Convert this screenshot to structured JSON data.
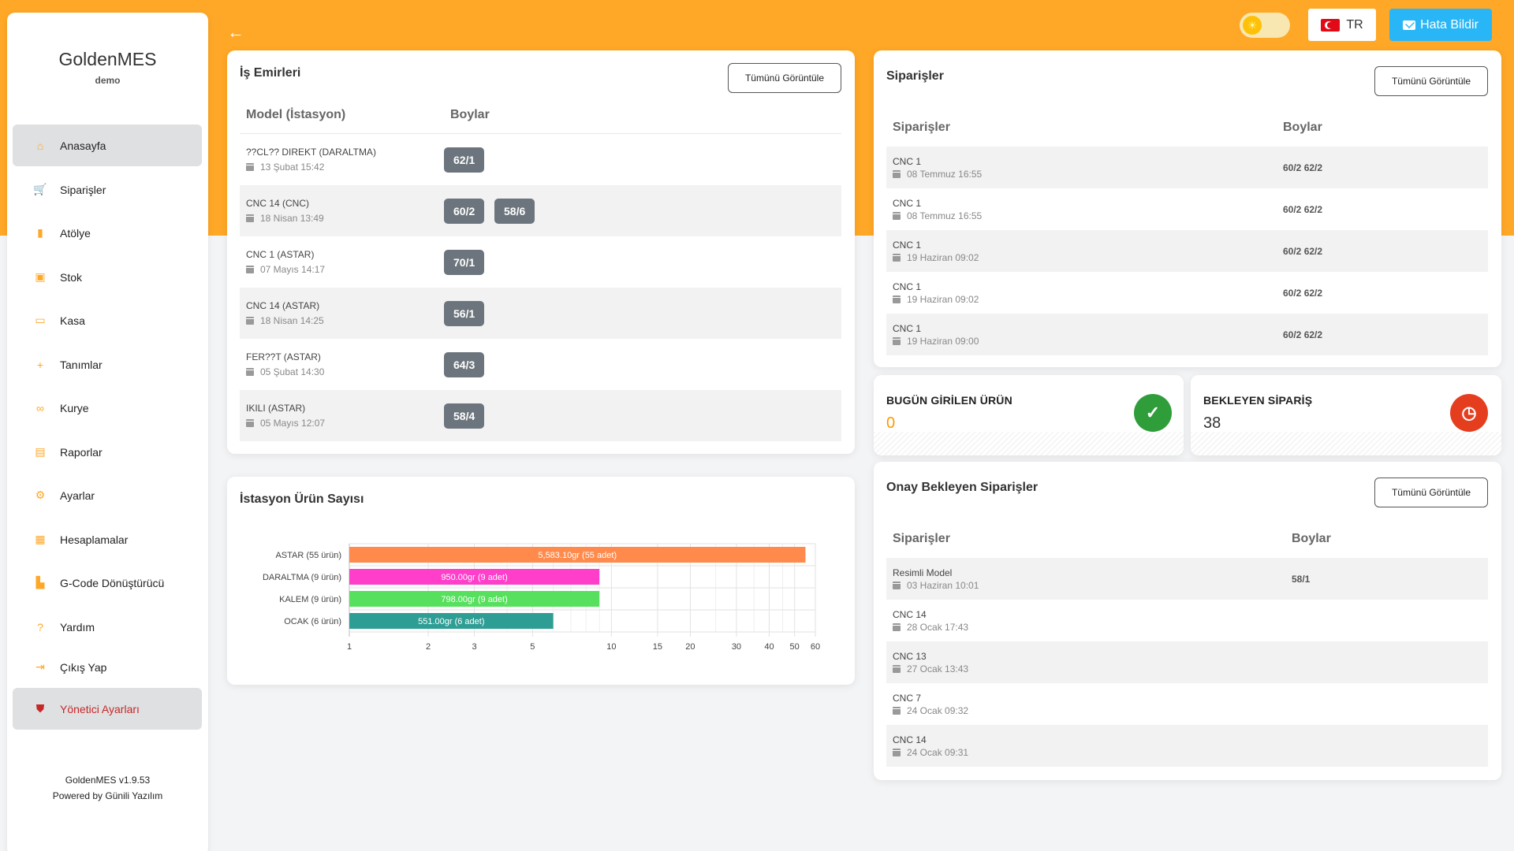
{
  "sidebar": {
    "brand": "GoldenMES",
    "brand_sub": "demo",
    "items": [
      {
        "label": "Anasayfa",
        "icon": "home-icon",
        "glyph": "⌂"
      },
      {
        "label": "Siparişler",
        "icon": "cart-icon",
        "glyph": "🛒"
      },
      {
        "label": "Atölye",
        "icon": "factory-icon",
        "glyph": "▮"
      },
      {
        "label": "Stok",
        "icon": "briefcase-icon",
        "glyph": "▣"
      },
      {
        "label": "Kasa",
        "icon": "cash-icon",
        "glyph": "▭"
      },
      {
        "label": "Tanımlar",
        "icon": "plus-icon",
        "glyph": "+"
      },
      {
        "label": "Kurye",
        "icon": "motorcycle-icon",
        "glyph": "∞"
      },
      {
        "label": "Raporlar",
        "icon": "report-icon",
        "glyph": "▤"
      },
      {
        "label": "Ayarlar",
        "icon": "gear-icon",
        "glyph": "⚙"
      },
      {
        "label": "Hesaplamalar",
        "icon": "grid-icon",
        "glyph": "▦"
      },
      {
        "label": "G-Code Dönüştürücü",
        "icon": "file-code-icon",
        "glyph": "▙"
      },
      {
        "label": "Yardım",
        "icon": "question-icon",
        "glyph": "?"
      },
      {
        "label": "Çıkış Yap",
        "icon": "logout-icon",
        "glyph": "⇥"
      },
      {
        "label": "Yönetici Ayarları",
        "icon": "shield-icon",
        "glyph": "⛊"
      }
    ],
    "version": "GoldenMES v1.9.53",
    "powered_by": "Powered by Günili Yazılım"
  },
  "topbar": {
    "language": "TR",
    "report_button": "Hata Bildir"
  },
  "work_orders": {
    "title": "İş Emirleri",
    "view_all": "Tümünü Görüntüle",
    "col_model": "Model (İstasyon)",
    "col_sizes": "Boylar",
    "rows": [
      {
        "title": "??CL?? DIREKT (DARALTMA)",
        "date": "13 Şubat 15:42",
        "badges": [
          "62/1"
        ]
      },
      {
        "title": "CNC 14 (CNC)",
        "date": "18 Nisan 13:49",
        "badges": [
          "60/2",
          "58/6"
        ]
      },
      {
        "title": "CNC 1 (ASTAR)",
        "date": "07 Mayıs 14:17",
        "badges": [
          "70/1"
        ]
      },
      {
        "title": "CNC 14 (ASTAR)",
        "date": "18 Nisan 14:25",
        "badges": [
          "56/1"
        ]
      },
      {
        "title": "FER??T (ASTAR)",
        "date": "05 Şubat 14:30",
        "badges": [
          "64/3"
        ]
      },
      {
        "title": "IKILI (ASTAR)",
        "date": "05 Mayıs 12:07",
        "badges": [
          "58/4"
        ]
      }
    ]
  },
  "orders": {
    "title": "Siparişler",
    "view_all": "Tümünü Görüntüle",
    "col_orders": "Siparişler",
    "col_sizes": "Boylar",
    "rows": [
      {
        "title": "CNC 1",
        "date": "08 Temmuz 16:55",
        "sizes": "60/2 62/2"
      },
      {
        "title": "CNC 1",
        "date": "08 Temmuz 16:55",
        "sizes": "60/2 62/2"
      },
      {
        "title": "CNC 1",
        "date": "19 Haziran 09:02",
        "sizes": "60/2 62/2"
      },
      {
        "title": "CNC 1",
        "date": "19 Haziran 09:02",
        "sizes": "60/2 62/2"
      },
      {
        "title": "CNC 1",
        "date": "19 Haziran 09:00",
        "sizes": "60/2 62/2"
      }
    ]
  },
  "stats": {
    "today_label": "BUGÜN GİRİLEN ÜRÜN",
    "today_value": "0",
    "today_color": "#ff9800",
    "pending_label": "BEKLEYEN SİPARİŞ",
    "pending_value": "38",
    "pending_color": "#333333"
  },
  "pending_approval": {
    "title": "Onay Bekleyen Siparişler",
    "view_all": "Tümünü Görüntüle",
    "col_orders": "Siparişler",
    "col_sizes": "Boylar",
    "rows": [
      {
        "title": "Resimli Model",
        "date": "03 Haziran 10:01",
        "sizes": "58/1"
      },
      {
        "title": "CNC 14",
        "date": "28 Ocak 17:43",
        "sizes": ""
      },
      {
        "title": "CNC 13",
        "date": "27 Ocak 13:43",
        "sizes": ""
      },
      {
        "title": "CNC 7",
        "date": "24 Ocak 09:32",
        "sizes": ""
      },
      {
        "title": "CNC 14",
        "date": "24 Ocak 09:31",
        "sizes": ""
      }
    ]
  },
  "chart_card": {
    "title": "İstasyon Ürün Sayısı"
  },
  "chart_data": {
    "type": "bar",
    "orientation": "horizontal",
    "x_scale": "log",
    "xlim": [
      1,
      60
    ],
    "x_ticks": [
      1,
      2,
      3,
      5,
      10,
      15,
      20,
      30,
      40,
      50,
      60
    ],
    "categories": [
      "ASTAR (55 ürün)",
      "DARALTMA (9 ürün)",
      "KALEM (9 ürün)",
      "OCAK (6 ürün)"
    ],
    "values": [
      55,
      9,
      9,
      6
    ],
    "data_labels": [
      "5,583.10gr (55 adet)",
      "950.00gr (9 adet)",
      "798.00gr (9 adet)",
      "551.00gr (6 adet)"
    ],
    "colors": [
      "#ff8a4c",
      "#ff3ec9",
      "#56e05d",
      "#2e9e94"
    ],
    "grid": true
  }
}
